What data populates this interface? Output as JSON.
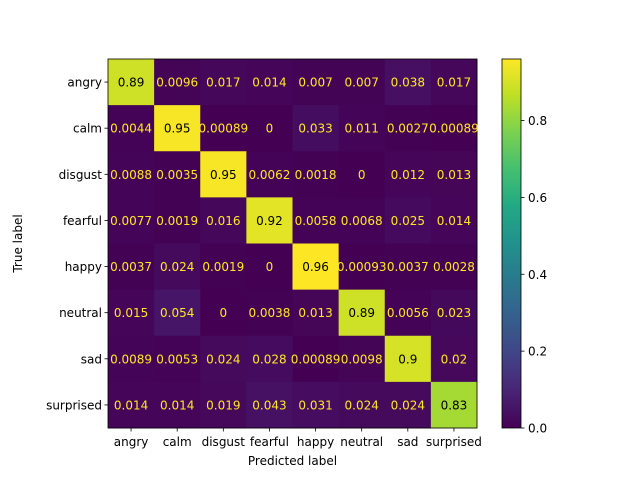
{
  "chart_data": {
    "type": "heatmap",
    "title": "",
    "xlabel": "Predicted label",
    "ylabel": "True label",
    "x_categories": [
      "angry",
      "calm",
      "disgust",
      "fearful",
      "happy",
      "neutral",
      "sad",
      "surprised"
    ],
    "y_categories": [
      "angry",
      "calm",
      "disgust",
      "fearful",
      "happy",
      "neutral",
      "sad",
      "surprised"
    ],
    "values": [
      [
        0.89,
        0.0096,
        0.017,
        0.014,
        0.007,
        0.007,
        0.038,
        0.017
      ],
      [
        0.0044,
        0.95,
        0.00089,
        0,
        0.033,
        0.011,
        0.0027,
        0.00089
      ],
      [
        0.0088,
        0.0035,
        0.95,
        0.0062,
        0.0018,
        0,
        0.012,
        0.013
      ],
      [
        0.0077,
        0.0019,
        0.016,
        0.92,
        0.0058,
        0.0068,
        0.025,
        0.014
      ],
      [
        0.0037,
        0.024,
        0.0019,
        0,
        0.96,
        0.00093,
        0.0037,
        0.0028
      ],
      [
        0.015,
        0.054,
        0,
        0.0038,
        0.013,
        0.89,
        0.0056,
        0.023
      ],
      [
        0.0089,
        0.0053,
        0.024,
        0.028,
        0.00089,
        0.0098,
        0.9,
        0.02
      ],
      [
        0.014,
        0.014,
        0.019,
        0.043,
        0.031,
        0.024,
        0.024,
        0.83
      ]
    ],
    "value_labels": [
      [
        "0.89",
        "0.0096",
        "0.017",
        "0.014",
        "0.007",
        "0.007",
        "0.038",
        "0.017"
      ],
      [
        "0.0044",
        "0.95",
        "0.00089",
        "0",
        "0.033",
        "0.011",
        "0.0027",
        "0.00089"
      ],
      [
        "0.0088",
        "0.0035",
        "0.95",
        "0.0062",
        "0.0018",
        "0",
        "0.012",
        "0.013"
      ],
      [
        "0.0077",
        "0.0019",
        "0.016",
        "0.92",
        "0.0058",
        "0.0068",
        "0.025",
        "0.014"
      ],
      [
        "0.0037",
        "0.024",
        "0.0019",
        "0",
        "0.96",
        "0.00093",
        "0.0037",
        "0.0028"
      ],
      [
        "0.015",
        "0.054",
        "0",
        "0.0038",
        "0.013",
        "0.89",
        "0.0056",
        "0.023"
      ],
      [
        "0.0089",
        "0.0053",
        "0.024",
        "0.028",
        "0.00089",
        "0.0098",
        "0.9",
        "0.02"
      ],
      [
        "0.014",
        "0.014",
        "0.019",
        "0.043",
        "0.031",
        "0.024",
        "0.024",
        "0.83"
      ]
    ],
    "colormap": "viridis",
    "color_range": [
      0,
      0.96
    ],
    "colorbar_ticks": [
      0.0,
      0.2,
      0.4,
      0.6,
      0.8
    ],
    "colorbar_tick_labels": [
      "0.0",
      "0.2",
      "0.4",
      "0.6",
      "0.8"
    ],
    "text_color_light": "#fde725",
    "text_color_dark": "#000000",
    "grid": false
  }
}
